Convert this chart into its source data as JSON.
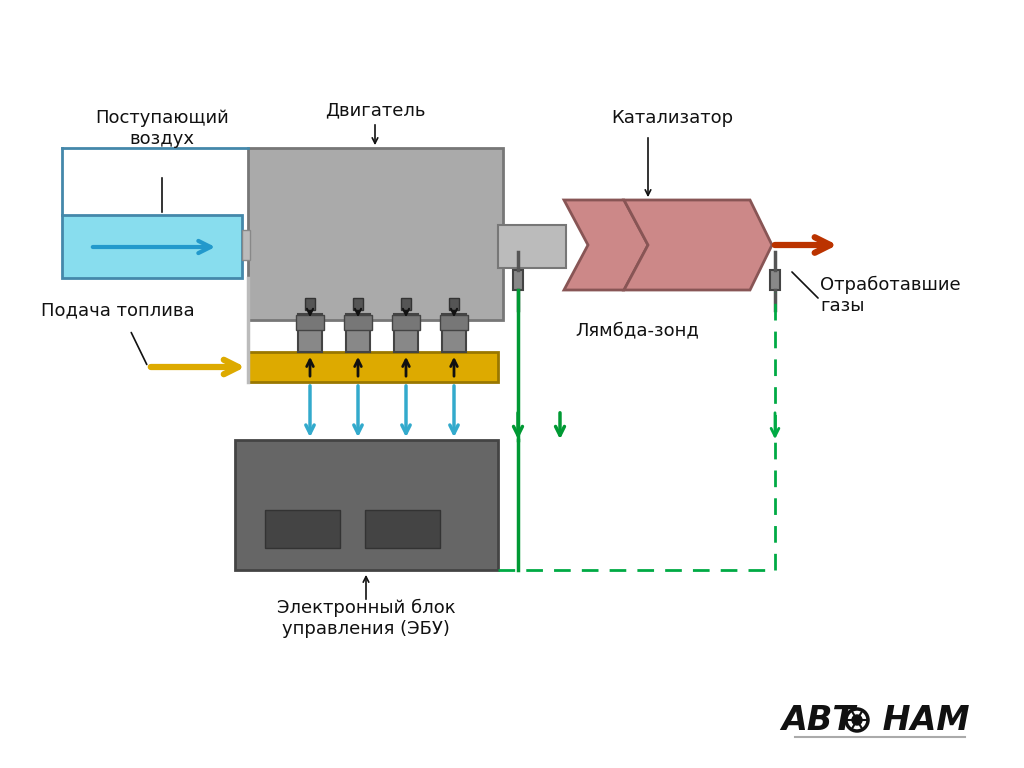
{
  "bg_color": "#ffffff",
  "colors": {
    "air_box": "#88ddee",
    "air_box_stroke": "#4488aa",
    "engine_box": "#aaaaaa",
    "engine_box_stroke": "#777777",
    "catalyst_fill": "#cc8888",
    "catalyst_stroke": "#885555",
    "fuel_rail": "#ddaa00",
    "fuel_rail_stroke": "#997700",
    "ecu_box": "#666666",
    "ecu_box_stroke": "#444444",
    "ecu_screen": "#444444",
    "arrow_air": "#2299cc",
    "arrow_fuel": "#ddaa00",
    "arrow_exhaust": "#bb3300",
    "lambda_solid": "#009933",
    "lambda_dashed": "#00aa44",
    "cyan_arrow": "#33aacc",
    "black": "#111111",
    "gray_sensor": "#888888",
    "dark_sensor": "#555555",
    "pipe_gray": "#999999",
    "text_color": "#111111",
    "connector_line": "#888888"
  },
  "labels": {
    "air": "Поступающий\nвоздух",
    "engine": "Двигатель",
    "catalyst": "Катализатор",
    "fuel": "Подача топлива",
    "lambda": "Лямбда-зонд",
    "exhaust": "Отработавшие\nгазы",
    "ecu": "Электронный блок\nуправления (ЭБУ)"
  },
  "font_size": 13,
  "font_size_logo": 24
}
